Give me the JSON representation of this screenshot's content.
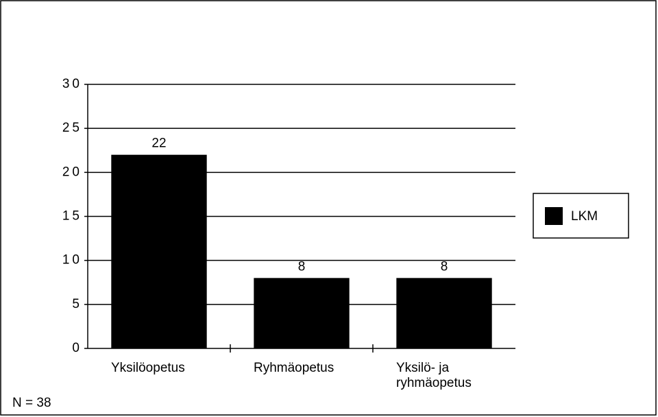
{
  "chart_data": {
    "type": "bar",
    "categories": [
      "Yksilöopetus",
      "Ryhmäopetus",
      "Yksilö- ja ryhmäopetus"
    ],
    "values": [
      22,
      8,
      8
    ],
    "color": "#000000",
    "ylim": [
      0,
      30
    ],
    "yticks": [
      0,
      5,
      10,
      15,
      20,
      25,
      30
    ],
    "grid": true,
    "legend": {
      "position": "right",
      "labels": [
        "LKM"
      ]
    },
    "annotation": "N = 38"
  }
}
